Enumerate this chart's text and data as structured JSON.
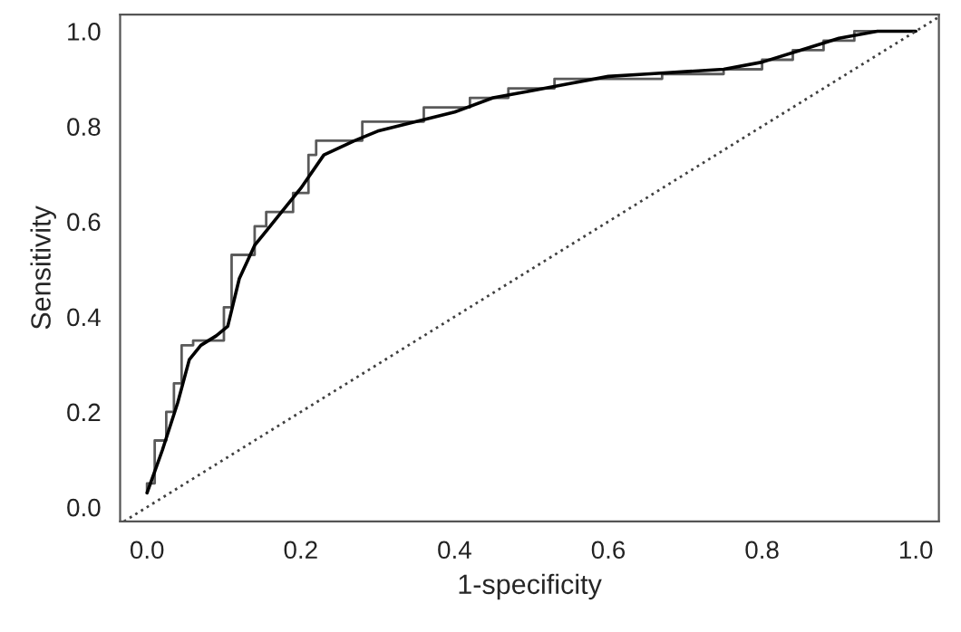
{
  "chart_data": {
    "type": "line",
    "xlabel": "1-specificity",
    "ylabel": "Sensitivity",
    "xlim": [
      -0.035,
      1.03
    ],
    "ylim": [
      -0.03,
      1.035
    ],
    "xticks": [
      {
        "value": 0,
        "label": "0.0"
      },
      0.2,
      0.4,
      0.6,
      0.8,
      {
        "value": 1,
        "label": "1.0"
      }
    ],
    "yticks": [
      {
        "value": 0,
        "label": "0.0"
      },
      0.2,
      0.4,
      0.6,
      0.8,
      {
        "value": 1,
        "label": "1.0"
      }
    ],
    "grid": false,
    "legend": false,
    "marker": "none",
    "series": [
      {
        "color": "#5a5a5a",
        "line_style": "solid",
        "x": [
          0,
          0,
          0.01,
          0.01,
          0.025,
          0.025,
          0.035,
          0.035,
          0.045,
          0.045,
          0.06,
          0.06,
          0.1,
          0.1,
          0.11,
          0.11,
          0.14,
          0.14,
          0.155,
          0.155,
          0.19,
          0.19,
          0.21,
          0.21,
          0.22,
          0.22,
          0.28,
          0.28,
          0.36,
          0.36,
          0.42,
          0.42,
          0.47,
          0.47,
          0.53,
          0.53,
          0.67,
          0.67,
          0.75,
          0.75,
          0.8,
          0.8,
          0.84,
          0.84,
          0.88,
          0.88,
          0.92,
          0.92,
          1.0
        ],
        "values": [
          0.03,
          0.05,
          0.05,
          0.14,
          0.14,
          0.2,
          0.2,
          0.26,
          0.26,
          0.34,
          0.34,
          0.35,
          0.35,
          0.42,
          0.42,
          0.53,
          0.53,
          0.59,
          0.59,
          0.62,
          0.62,
          0.66,
          0.66,
          0.74,
          0.74,
          0.77,
          0.77,
          0.81,
          0.81,
          0.84,
          0.84,
          0.86,
          0.86,
          0.88,
          0.88,
          0.9,
          0.9,
          0.91,
          0.91,
          0.92,
          0.92,
          0.94,
          0.94,
          0.96,
          0.96,
          0.98,
          0.98,
          1.0,
          1.0
        ]
      },
      {
        "color": "#000000",
        "line_style": "solid",
        "x": [
          0,
          0.02,
          0.04,
          0.055,
          0.07,
          0.09,
          0.105,
          0.12,
          0.14,
          0.17,
          0.2,
          0.23,
          0.27,
          0.3,
          0.35,
          0.4,
          0.45,
          0.5,
          0.55,
          0.6,
          0.65,
          0.7,
          0.75,
          0.8,
          0.85,
          0.9,
          0.95,
          1.0
        ],
        "values": [
          0.03,
          0.12,
          0.22,
          0.31,
          0.34,
          0.36,
          0.38,
          0.48,
          0.55,
          0.61,
          0.67,
          0.74,
          0.77,
          0.79,
          0.81,
          0.83,
          0.86,
          0.875,
          0.89,
          0.905,
          0.91,
          0.915,
          0.92,
          0.935,
          0.96,
          0.985,
          1.0,
          1.0
        ]
      },
      {
        "color": "#404040",
        "line_style": "dotted",
        "x": [
          -0.03,
          1.03
        ],
        "values": [
          -0.03,
          1.03
        ]
      }
    ]
  }
}
